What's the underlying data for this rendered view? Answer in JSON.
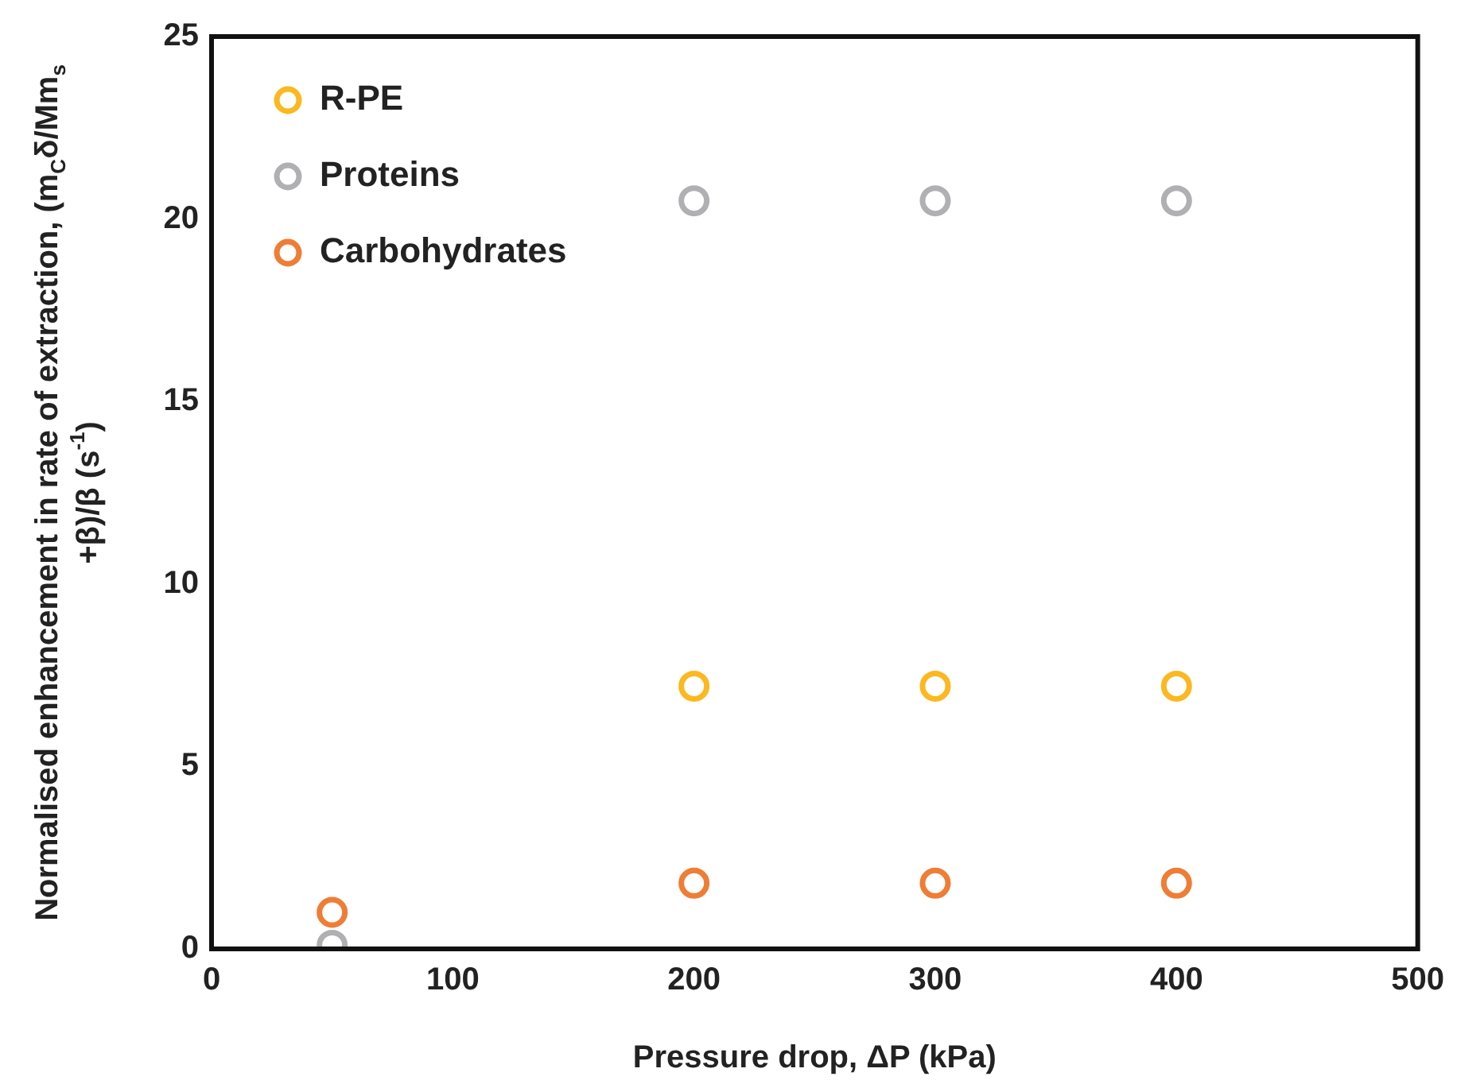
{
  "chart_data": {
    "type": "scatter",
    "xlabel": "Pressure drop, ΔP (kPa)",
    "ylabel": "Normalised enhancement in rate of extraction, (m$_{C}$δ/Mm$_{s}$+β)/β (s$^{-1}$)",
    "x": [
      50,
      200,
      300,
      400
    ],
    "series": [
      {
        "name": "R-PE",
        "color": "#fbb820",
        "values": [
          null,
          7.2,
          7.2,
          7.2
        ]
      },
      {
        "name": "Proteins",
        "color": "#b0b0b3",
        "values": [
          0.1,
          20.5,
          20.5,
          20.5
        ]
      },
      {
        "name": "Carbohydrates",
        "color": "#ef7d35",
        "values": [
          1.0,
          1.8,
          1.8,
          1.8
        ]
      }
    ],
    "xlim": [
      0,
      500
    ],
    "xticks": [
      0,
      100,
      200,
      300,
      400,
      500
    ],
    "ylim": [
      0,
      25
    ],
    "yticks": [
      0,
      5,
      10,
      15,
      20,
      25
    ],
    "grid": false,
    "legend": "top left",
    "marker": "circle"
  }
}
